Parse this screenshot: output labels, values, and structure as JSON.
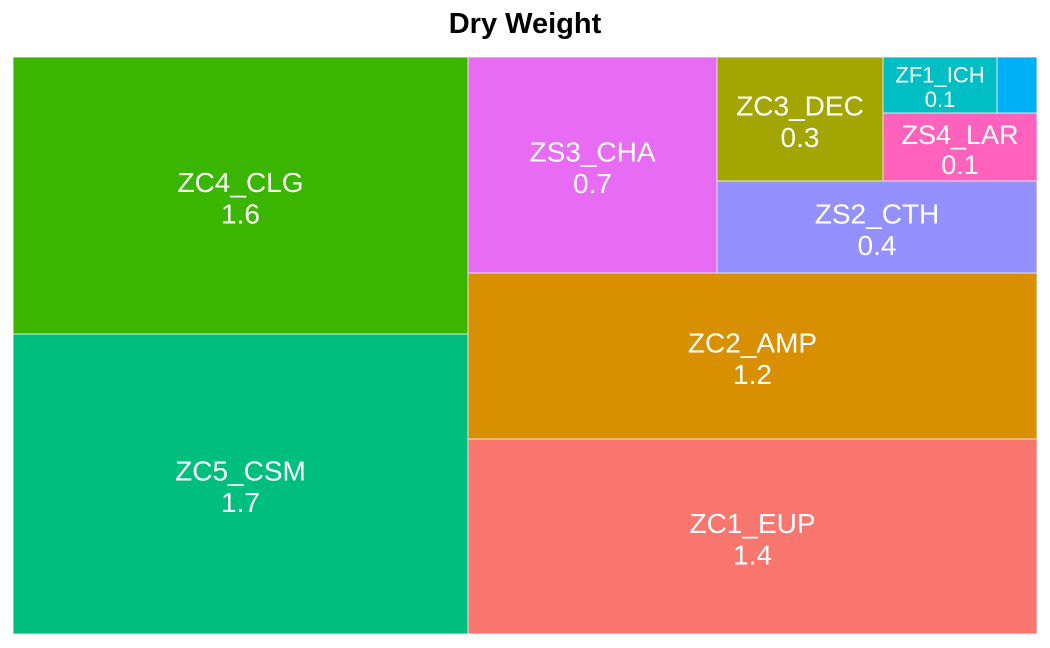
{
  "chart_data": {
    "type": "treemap",
    "title": "Dry Weight",
    "tiles": [
      {
        "name": "ZC5_CSM",
        "value": 1.7,
        "color": "#00BE7D"
      },
      {
        "name": "ZC4_CLG",
        "value": 1.6,
        "color": "#3AB600"
      },
      {
        "name": "ZC1_EUP",
        "value": 1.4,
        "color": "#F8766D"
      },
      {
        "name": "ZC2_AMP",
        "value": 1.2,
        "color": "#D89000"
      },
      {
        "name": "ZS3_CHA",
        "value": 0.7,
        "color": "#E76BF3"
      },
      {
        "name": "ZS2_CTH",
        "value": 0.4,
        "color": "#9590FF"
      },
      {
        "name": "ZC3_DEC",
        "value": 0.3,
        "color": "#A3A500"
      },
      {
        "name": "ZS4_LAR",
        "value": 0.1,
        "color": "#FF62BC"
      },
      {
        "name": "ZF1_ICH",
        "value": 0.1,
        "color": "#00BFC4"
      },
      {
        "name": "",
        "value": null,
        "color": "#00B0F6"
      }
    ]
  }
}
